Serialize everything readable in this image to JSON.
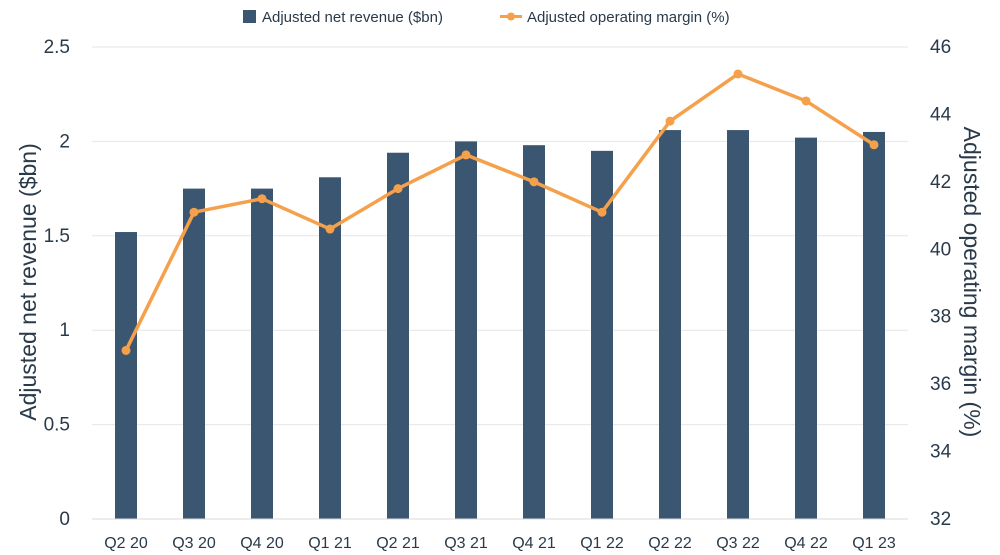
{
  "chart_data": {
    "type": "bar+line",
    "categories": [
      "Q2 20",
      "Q3 20",
      "Q4 20",
      "Q1 21",
      "Q2 21",
      "Q3 21",
      "Q4 21",
      "Q1 22",
      "Q2 22",
      "Q3 22",
      "Q4 22",
      "Q1 23"
    ],
    "series": [
      {
        "name": "Adjusted net revenue ($bn)",
        "type": "bar",
        "axis": "left",
        "color": "#3b5670",
        "values": [
          1.52,
          1.75,
          1.75,
          1.81,
          1.94,
          2.0,
          1.98,
          1.95,
          2.06,
          2.06,
          2.02,
          2.05
        ]
      },
      {
        "name": "Adjusted operating margin (%)",
        "type": "line",
        "axis": "right",
        "color": "#f5a04b",
        "values": [
          37.0,
          41.1,
          41.5,
          40.6,
          41.8,
          42.8,
          42.0,
          41.1,
          43.8,
          45.2,
          44.4,
          43.1
        ]
      }
    ],
    "ylabel_left": "Adjusted net revenue ($bn)",
    "ylabel_right": "Adjusted operating margin (%)",
    "ylim_left": [
      0,
      2.5
    ],
    "ylim_right": [
      32,
      46
    ],
    "yticks_left": [
      "0",
      "0.5",
      "1",
      "1.5",
      "2",
      "2.5"
    ],
    "yticks_left_values": [
      0,
      0.5,
      1,
      1.5,
      2,
      2.5
    ],
    "yticks_right": [
      "32",
      "34",
      "36",
      "38",
      "40",
      "42",
      "44",
      "46"
    ],
    "yticks_right_values": [
      32,
      34,
      36,
      38,
      40,
      42,
      44,
      46
    ],
    "grid": true,
    "legend_position": "top-center"
  }
}
